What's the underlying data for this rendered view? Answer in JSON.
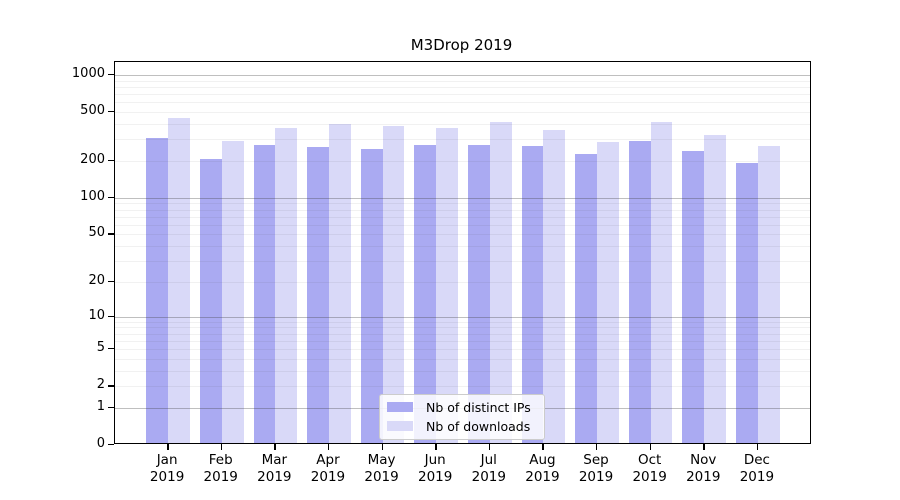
{
  "title": "M3Drop 2019",
  "chart_data": {
    "type": "bar",
    "title": "M3Drop 2019",
    "categories": [
      "Jan 2019",
      "Feb 2019",
      "Mar 2019",
      "Apr 2019",
      "May 2019",
      "Jun 2019",
      "Jul 2019",
      "Aug 2019",
      "Sep 2019",
      "Oct 2019",
      "Nov 2019",
      "Dec 2019"
    ],
    "series": [
      {
        "name": "Nb of distinct IPs",
        "color": "#aaaaf2",
        "values": [
          294,
          199,
          259,
          248,
          241,
          259,
          258,
          254,
          219,
          278,
          232,
          187
        ]
      },
      {
        "name": "Nb of downloads",
        "color": "#d9d9f8",
        "values": [
          430,
          279,
          356,
          384,
          370,
          355,
          396,
          341,
          276,
          396,
          312,
          253
        ]
      }
    ],
    "xlabel": "",
    "ylabel": "",
    "y_ticks": [
      0,
      1,
      2,
      5,
      10,
      20,
      50,
      100,
      200,
      500,
      1000
    ],
    "y_scale": "log10(1+v)",
    "ylim": [
      0,
      1273
    ],
    "grid": "on",
    "grid_major_at": [
      1,
      10,
      100,
      1000
    ],
    "grid_minor": "2-9 within each decade",
    "legend_position": "lower center"
  }
}
